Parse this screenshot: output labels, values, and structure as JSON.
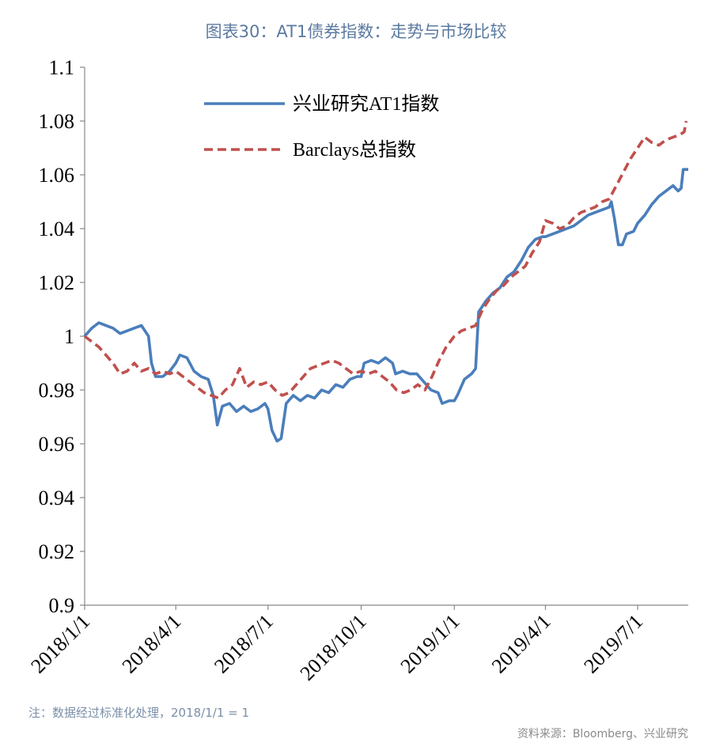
{
  "title": "图表30：AT1债券指数：走势与市场比较",
  "note": "注：数据经过标准化处理，2018/1/1 = 1",
  "source": "资料来源：Bloomberg、兴业研究",
  "colors": {
    "series_1": "#4a7ebb",
    "series_2": "#c0504d",
    "axis": "#888888"
  },
  "chart_data": {
    "type": "line",
    "title": "图表30：AT1债券指数：走势与市场比较",
    "xlabel": "",
    "ylabel": "",
    "ylim": [
      0.9,
      1.1
    ],
    "yticks": [
      "0.9",
      "0.92",
      "0.94",
      "0.96",
      "0.98",
      "1",
      "1.02",
      "1.04",
      "1.06",
      "1.08",
      "1.1"
    ],
    "xlim": [
      "2018/1/1",
      "2019/8/20"
    ],
    "xticks": [
      "2018/1/1",
      "2018/4/1",
      "2018/7/1",
      "2018/10/1",
      "2019/1/1",
      "2019/4/1",
      "2019/7/1"
    ],
    "grid": false,
    "legend_position": "top-left",
    "series": [
      {
        "name": "兴业研究AT1指数",
        "color": "#4a7ebb",
        "style": "solid",
        "points": [
          [
            "2018/1/1",
            1.0
          ],
          [
            "2018/1/8",
            1.003
          ],
          [
            "2018/1/15",
            1.005
          ],
          [
            "2018/1/22",
            1.004
          ],
          [
            "2018/1/29",
            1.003
          ],
          [
            "2018/2/5",
            1.001
          ],
          [
            "2018/2/12",
            1.002
          ],
          [
            "2018/2/19",
            1.003
          ],
          [
            "2018/2/26",
            1.004
          ],
          [
            "2018/3/5",
            1.0
          ],
          [
            "2018/3/8",
            0.99
          ],
          [
            "2018/3/12",
            0.985
          ],
          [
            "2018/3/19",
            0.985
          ],
          [
            "2018/3/26",
            0.987
          ],
          [
            "2018/4/1",
            0.99
          ],
          [
            "2018/4/5",
            0.993
          ],
          [
            "2018/4/12",
            0.992
          ],
          [
            "2018/4/19",
            0.987
          ],
          [
            "2018/4/26",
            0.985
          ],
          [
            "2018/5/3",
            0.984
          ],
          [
            "2018/5/8",
            0.978
          ],
          [
            "2018/5/12",
            0.967
          ],
          [
            "2018/5/17",
            0.974
          ],
          [
            "2018/5/24",
            0.975
          ],
          [
            "2018/5/31",
            0.972
          ],
          [
            "2018/6/7",
            0.974
          ],
          [
            "2018/6/14",
            0.972
          ],
          [
            "2018/6/21",
            0.973
          ],
          [
            "2018/6/28",
            0.975
          ],
          [
            "2018/7/1",
            0.973
          ],
          [
            "2018/7/5",
            0.965
          ],
          [
            "2018/7/10",
            0.961
          ],
          [
            "2018/7/14",
            0.962
          ],
          [
            "2018/7/19",
            0.975
          ],
          [
            "2018/7/26",
            0.978
          ],
          [
            "2018/8/2",
            0.976
          ],
          [
            "2018/8/9",
            0.978
          ],
          [
            "2018/8/16",
            0.977
          ],
          [
            "2018/8/23",
            0.98
          ],
          [
            "2018/8/30",
            0.979
          ],
          [
            "2018/9/6",
            0.982
          ],
          [
            "2018/9/13",
            0.981
          ],
          [
            "2018/9/20",
            0.984
          ],
          [
            "2018/9/27",
            0.985
          ],
          [
            "2018/10/1",
            0.985
          ],
          [
            "2018/10/4",
            0.99
          ],
          [
            "2018/10/11",
            0.991
          ],
          [
            "2018/10/18",
            0.99
          ],
          [
            "2018/10/25",
            0.992
          ],
          [
            "2018/11/1",
            0.99
          ],
          [
            "2018/11/4",
            0.986
          ],
          [
            "2018/11/11",
            0.987
          ],
          [
            "2018/11/18",
            0.986
          ],
          [
            "2018/11/25",
            0.986
          ],
          [
            "2018/12/2",
            0.983
          ],
          [
            "2018/12/9",
            0.98
          ],
          [
            "2018/12/16",
            0.979
          ],
          [
            "2018/12/20",
            0.975
          ],
          [
            "2018/12/27",
            0.976
          ],
          [
            "2019/1/1",
            0.976
          ],
          [
            "2019/1/4",
            0.978
          ],
          [
            "2019/1/11",
            0.984
          ],
          [
            "2019/1/18",
            0.986
          ],
          [
            "2019/1/22",
            0.988
          ],
          [
            "2019/1/25",
            1.009
          ],
          [
            "2019/2/1",
            1.013
          ],
          [
            "2019/2/8",
            1.016
          ],
          [
            "2019/2/15",
            1.018
          ],
          [
            "2019/2/22",
            1.022
          ],
          [
            "2019/3/1",
            1.024
          ],
          [
            "2019/3/8",
            1.028
          ],
          [
            "2019/3/15",
            1.033
          ],
          [
            "2019/3/22",
            1.036
          ],
          [
            "2019/3/29",
            1.037
          ],
          [
            "2019/4/1",
            1.037
          ],
          [
            "2019/4/8",
            1.038
          ],
          [
            "2019/4/15",
            1.039
          ],
          [
            "2019/4/22",
            1.04
          ],
          [
            "2019/4/29",
            1.041
          ],
          [
            "2019/5/6",
            1.043
          ],
          [
            "2019/5/13",
            1.045
          ],
          [
            "2019/5/20",
            1.046
          ],
          [
            "2019/5/27",
            1.047
          ],
          [
            "2019/6/3",
            1.048
          ],
          [
            "2019/6/5",
            1.05
          ],
          [
            "2019/6/8",
            1.044
          ],
          [
            "2019/6/12",
            1.034
          ],
          [
            "2019/6/16",
            1.034
          ],
          [
            "2019/6/20",
            1.038
          ],
          [
            "2019/6/27",
            1.039
          ],
          [
            "2019/7/1",
            1.042
          ],
          [
            "2019/7/8",
            1.045
          ],
          [
            "2019/7/15",
            1.049
          ],
          [
            "2019/7/22",
            1.052
          ],
          [
            "2019/7/29",
            1.054
          ],
          [
            "2019/8/5",
            1.056
          ],
          [
            "2019/8/10",
            1.054
          ],
          [
            "2019/8/13",
            1.055
          ],
          [
            "2019/8/15",
            1.062
          ],
          [
            "2019/8/20",
            1.062
          ]
        ]
      },
      {
        "name": "Barclays总指数",
        "color": "#c0504d",
        "style": "dashed",
        "points": [
          [
            "2018/1/1",
            1.0
          ],
          [
            "2018/1/8",
            0.998
          ],
          [
            "2018/1/15",
            0.996
          ],
          [
            "2018/1/22",
            0.993
          ],
          [
            "2018/1/29",
            0.99
          ],
          [
            "2018/2/5",
            0.986
          ],
          [
            "2018/2/12",
            0.987
          ],
          [
            "2018/2/19",
            0.99
          ],
          [
            "2018/2/26",
            0.987
          ],
          [
            "2018/3/5",
            0.988
          ],
          [
            "2018/3/12",
            0.986
          ],
          [
            "2018/3/19",
            0.987
          ],
          [
            "2018/3/26",
            0.986
          ],
          [
            "2018/4/1",
            0.987
          ],
          [
            "2018/4/8",
            0.985
          ],
          [
            "2018/4/15",
            0.983
          ],
          [
            "2018/4/22",
            0.981
          ],
          [
            "2018/4/29",
            0.979
          ],
          [
            "2018/5/6",
            0.978
          ],
          [
            "2018/5/13",
            0.977
          ],
          [
            "2018/5/20",
            0.98
          ],
          [
            "2018/5/27",
            0.982
          ],
          [
            "2018/6/3",
            0.988
          ],
          [
            "2018/6/10",
            0.981
          ],
          [
            "2018/6/17",
            0.983
          ],
          [
            "2018/6/24",
            0.982
          ],
          [
            "2018/7/1",
            0.983
          ],
          [
            "2018/7/8",
            0.98
          ],
          [
            "2018/7/15",
            0.978
          ],
          [
            "2018/7/22",
            0.979
          ],
          [
            "2018/7/29",
            0.982
          ],
          [
            "2018/8/5",
            0.985
          ],
          [
            "2018/8/12",
            0.988
          ],
          [
            "2018/8/19",
            0.989
          ],
          [
            "2018/8/26",
            0.99
          ],
          [
            "2018/9/2",
            0.991
          ],
          [
            "2018/9/9",
            0.99
          ],
          [
            "2018/9/16",
            0.988
          ],
          [
            "2018/9/23",
            0.986
          ],
          [
            "2018/10/1",
            0.987
          ],
          [
            "2018/10/8",
            0.986
          ],
          [
            "2018/10/15",
            0.987
          ],
          [
            "2018/10/22",
            0.985
          ],
          [
            "2018/10/29",
            0.983
          ],
          [
            "2018/11/5",
            0.98
          ],
          [
            "2018/11/12",
            0.979
          ],
          [
            "2018/11/19",
            0.98
          ],
          [
            "2018/11/26",
            0.982
          ],
          [
            "2018/12/3",
            0.98
          ],
          [
            "2018/12/10",
            0.985
          ],
          [
            "2018/12/17",
            0.991
          ],
          [
            "2018/12/24",
            0.996
          ],
          [
            "2019/1/1",
            1.0
          ],
          [
            "2019/1/8",
            1.002
          ],
          [
            "2019/1/15",
            1.003
          ],
          [
            "2019/1/22",
            1.004
          ],
          [
            "2019/1/29",
            1.01
          ],
          [
            "2019/2/5",
            1.014
          ],
          [
            "2019/2/12",
            1.017
          ],
          [
            "2019/2/19",
            1.019
          ],
          [
            "2019/2/26",
            1.022
          ],
          [
            "2019/3/5",
            1.024
          ],
          [
            "2019/3/12",
            1.026
          ],
          [
            "2019/3/19",
            1.031
          ],
          [
            "2019/3/26",
            1.035
          ],
          [
            "2019/4/1",
            1.043
          ],
          [
            "2019/4/8",
            1.042
          ],
          [
            "2019/4/15",
            1.04
          ],
          [
            "2019/4/22",
            1.041
          ],
          [
            "2019/4/29",
            1.044
          ],
          [
            "2019/5/6",
            1.046
          ],
          [
            "2019/5/13",
            1.047
          ],
          [
            "2019/5/20",
            1.048
          ],
          [
            "2019/5/27",
            1.05
          ],
          [
            "2019/6/3",
            1.051
          ],
          [
            "2019/6/10",
            1.056
          ],
          [
            "2019/6/17",
            1.061
          ],
          [
            "2019/6/24",
            1.066
          ],
          [
            "2019/7/1",
            1.07
          ],
          [
            "2019/7/8",
            1.074
          ],
          [
            "2019/7/15",
            1.072
          ],
          [
            "2019/7/22",
            1.071
          ],
          [
            "2019/7/29",
            1.073
          ],
          [
            "2019/8/5",
            1.074
          ],
          [
            "2019/8/12",
            1.075
          ],
          [
            "2019/8/16",
            1.076
          ],
          [
            "2019/8/18",
            1.08
          ]
        ]
      }
    ]
  }
}
